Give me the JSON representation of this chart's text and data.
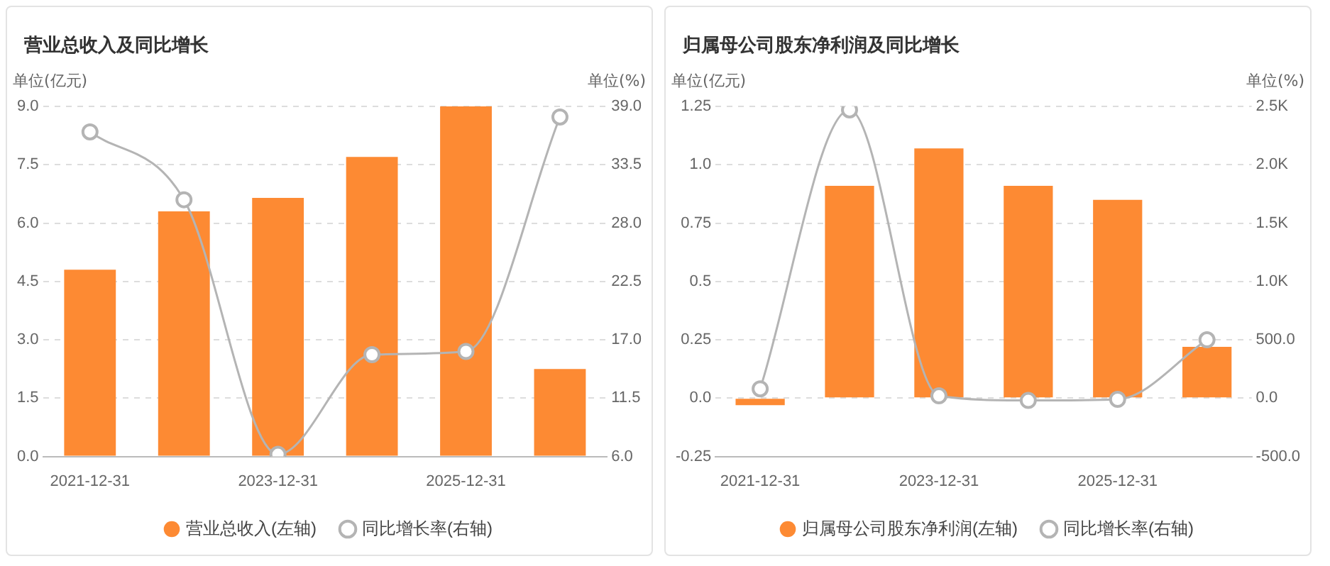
{
  "chart_data": [
    {
      "type": "bar",
      "title": "营业总收入及同比增长",
      "ylabel": "单位(亿元)",
      "y2label": "单位(%)",
      "categories": [
        "2021-12-31",
        null,
        "2023-12-31",
        null,
        "2025-12-31",
        null
      ],
      "series": [
        {
          "name": "营业总收入(左轴)",
          "color": "#fd8a33",
          "values": [
            4.8,
            6.3,
            6.65,
            7.7,
            9.0,
            2.25
          ]
        },
        {
          "name": "同比增长率(右轴)",
          "type": "line",
          "axis": "y2",
          "color": "#b4b4b4",
          "values": [
            36.6,
            30.2,
            6.2,
            15.6,
            15.9,
            38.0
          ]
        }
      ],
      "ylim": [
        0,
        9
      ],
      "yticks": [
        {
          "value": 0,
          "label": "0.0"
        },
        1.5,
        {
          "value": 3,
          "label": "3.0"
        },
        4.5,
        {
          "value": 6,
          "label": "6.0"
        },
        7.5,
        {
          "value": 9,
          "label": "9.0"
        }
      ],
      "y2lim": [
        6,
        39
      ],
      "y2ticks": [
        {
          "value": 6,
          "label": "6.0"
        },
        11.5,
        {
          "value": 17,
          "label": "17.0"
        },
        22.5,
        {
          "value": 28,
          "label": "28.0"
        },
        33.5,
        {
          "value": 39,
          "label": "39.0"
        }
      ],
      "grid": "y",
      "legend": "bottom",
      "marker": "circle",
      "line_style": "solid"
    },
    {
      "type": "bar",
      "title": "归属母公司股东净利润及同比增长",
      "ylabel": "单位(亿元)",
      "y2label": "单位(%)",
      "categories": [
        "2021-12-31",
        null,
        "2023-12-31",
        null,
        "2025-12-31",
        null
      ],
      "series": [
        {
          "name": "归属母公司股东净利润(左轴)",
          "color": "#fd8a33",
          "values": [
            -0.03,
            0.91,
            1.07,
            0.91,
            0.85,
            0.22
          ]
        },
        {
          "name": "同比增长率(右轴)",
          "type": "line",
          "axis": "y2",
          "color": "#b4b4b4",
          "values": [
            80,
            2470,
            20,
            -20,
            -10,
            500
          ]
        }
      ],
      "ylim": [
        -0.25,
        1.25
      ],
      "yticks": [
        -0.25,
        {
          "value": 0,
          "label": "0.0"
        },
        0.25,
        0.5,
        0.75,
        {
          "value": 1,
          "label": "1.0"
        },
        1.25
      ],
      "y2lim": [
        -500,
        2500
      ],
      "y2ticks": [
        {
          "value": -500,
          "label": "-500.0"
        },
        {
          "value": 0,
          "label": "0.0"
        },
        {
          "value": 500,
          "label": "500.0"
        },
        {
          "value": 1000,
          "label": "1.0K"
        },
        {
          "value": 1500,
          "label": "1.5K"
        },
        {
          "value": 2000,
          "label": "2.0K"
        },
        {
          "value": 2500,
          "label": "2.5K"
        }
      ],
      "grid": "y",
      "legend": "bottom",
      "marker": "circle",
      "line_style": "solid"
    }
  ]
}
